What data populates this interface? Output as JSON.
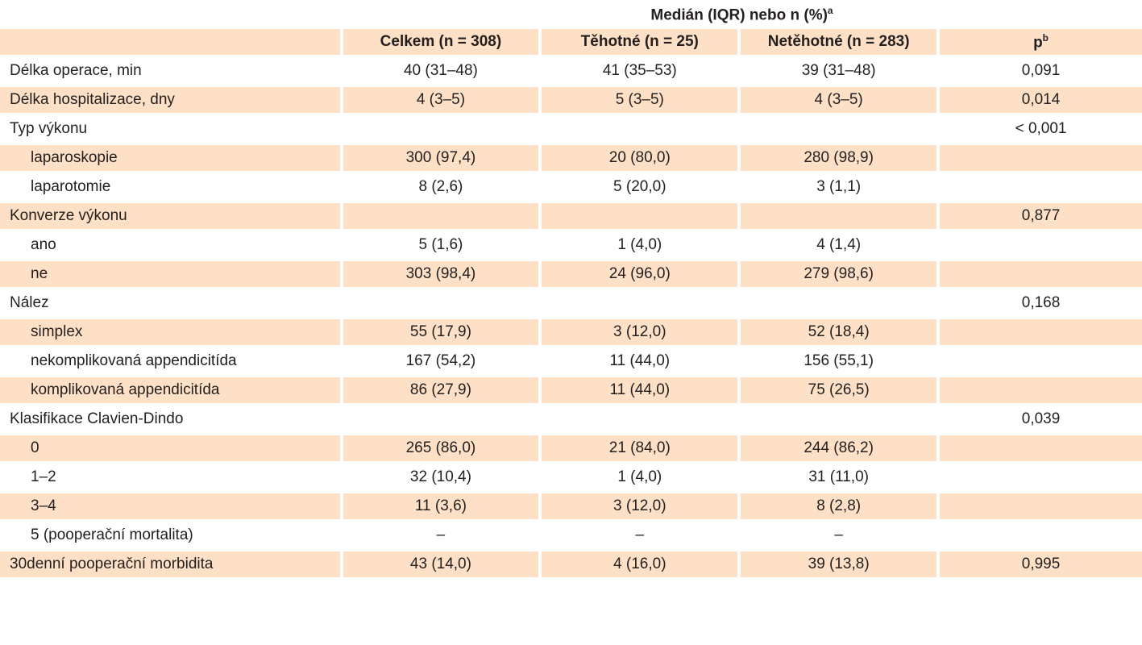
{
  "group_header": {
    "text": "Medián (IQR) nebo n (%)",
    "sup": "a"
  },
  "columns": [
    {
      "text": "",
      "sup": ""
    },
    {
      "text": "Celkem (n = 308)",
      "sup": ""
    },
    {
      "text": "Těhotné (n = 25)",
      "sup": ""
    },
    {
      "text": "Netěhotné (n = 283)",
      "sup": ""
    },
    {
      "text": "p",
      "sup": "b"
    }
  ],
  "rows": [
    {
      "label": "Délka operace, min",
      "indent": false,
      "celkem": "40 (31–48)",
      "tehotne": "41 (35–53)",
      "netehotne": "39 (31–48)",
      "p": "0,091"
    },
    {
      "label": "Délka hospitalizace, dny",
      "indent": false,
      "celkem": "4 (3–5)",
      "tehotne": "5 (3–5)",
      "netehotne": "4 (3–5)",
      "p": "0,014"
    },
    {
      "label": "Typ výkonu",
      "indent": false,
      "celkem": "",
      "tehotne": "",
      "netehotne": "",
      "p": "< 0,001"
    },
    {
      "label": "laparoskopie",
      "indent": true,
      "celkem": "300 (97,4)",
      "tehotne": "20 (80,0)",
      "netehotne": "280 (98,9)",
      "p": ""
    },
    {
      "label": "laparotomie",
      "indent": true,
      "celkem": "8 (2,6)",
      "tehotne": "5 (20,0)",
      "netehotne": "3 (1,1)",
      "p": ""
    },
    {
      "label": "Konverze výkonu",
      "indent": false,
      "celkem": "",
      "tehotne": "",
      "netehotne": "",
      "p": "0,877"
    },
    {
      "label": "ano",
      "indent": true,
      "celkem": "5 (1,6)",
      "tehotne": "1 (4,0)",
      "netehotne": "4 (1,4)",
      "p": ""
    },
    {
      "label": "ne",
      "indent": true,
      "celkem": "303 (98,4)",
      "tehotne": "24 (96,0)",
      "netehotne": "279 (98,6)",
      "p": ""
    },
    {
      "label": "Nález",
      "indent": false,
      "celkem": "",
      "tehotne": "",
      "netehotne": "",
      "p": "0,168"
    },
    {
      "label": "simplex",
      "indent": true,
      "celkem": "55 (17,9)",
      "tehotne": "3 (12,0)",
      "netehotne": "52 (18,4)",
      "p": ""
    },
    {
      "label": "nekomplikovaná appendicitída",
      "indent": true,
      "celkem": "167 (54,2)",
      "tehotne": "11 (44,0)",
      "netehotne": "156 (55,1)",
      "p": ""
    },
    {
      "label": "komplikovaná appendicitída",
      "indent": true,
      "celkem": "86 (27,9)",
      "tehotne": "11 (44,0)",
      "netehotne": "75 (26,5)",
      "p": ""
    },
    {
      "label": "Klasifikace Clavien-Dindo",
      "indent": false,
      "celkem": "",
      "tehotne": "",
      "netehotne": "",
      "p": "0,039"
    },
    {
      "label": "0",
      "indent": true,
      "celkem": "265 (86,0)",
      "tehotne": "21 (84,0)",
      "netehotne": "244 (86,2)",
      "p": ""
    },
    {
      "label": "1–2",
      "indent": true,
      "celkem": "32 (10,4)",
      "tehotne": "1 (4,0)",
      "netehotne": "31 (11,0)",
      "p": ""
    },
    {
      "label": "3–4",
      "indent": true,
      "celkem": "11 (3,6)",
      "tehotne": "3 (12,0)",
      "netehotne": "8 (2,8)",
      "p": ""
    },
    {
      "label": "5 (pooperační mortalita)",
      "indent": true,
      "celkem": "–",
      "tehotne": "–",
      "netehotne": "–",
      "p": ""
    },
    {
      "label": "30denní pooperační morbidita",
      "indent": false,
      "celkem": "43 (14,0)",
      "tehotne": "4 (16,0)",
      "netehotne": "39 (13,8)",
      "p": "0,995"
    }
  ],
  "colors": {
    "shade": "#fde0c5",
    "text": "#231f20"
  }
}
